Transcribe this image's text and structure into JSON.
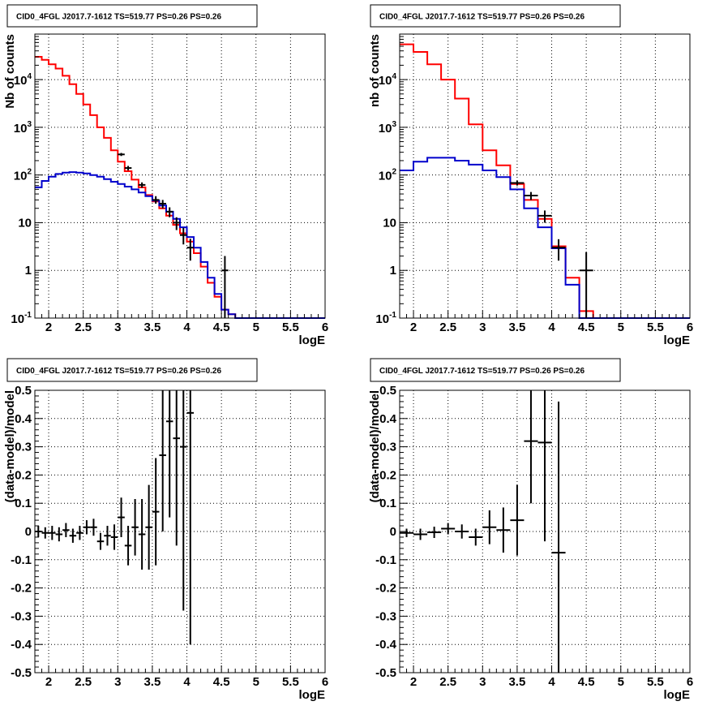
{
  "chart_data": [
    {
      "type": "line",
      "title": "CID0_4FGL J2017.7-1612 TS=519.77 PS=0.26 PS=0.26",
      "xlabel": "logE",
      "ylabel": "Nb of counts",
      "xlim": [
        1.8,
        6.0
      ],
      "ylim": [
        0.1,
        90000
      ],
      "yscale": "log",
      "grid": true,
      "xticks": [
        "2",
        "2.5",
        "3",
        "3.5",
        "4",
        "4.5",
        "5",
        "5.5",
        "6"
      ],
      "yticks": [
        "10^-1",
        "1",
        "10",
        "10^2",
        "10^3",
        "10^4"
      ],
      "series": [
        {
          "color": "#ff0000",
          "edges": [
            1.8,
            1.9,
            2.0,
            2.1,
            2.2,
            2.3,
            2.4,
            2.5,
            2.6,
            2.7,
            2.8,
            2.9,
            3.0,
            3.1,
            3.2,
            3.3,
            3.4,
            3.5,
            3.6,
            3.7,
            3.8,
            3.9,
            4.0,
            4.1,
            4.2,
            4.3,
            4.4,
            4.5,
            4.6,
            4.7,
            4.8,
            4.9,
            5.0,
            5.1,
            5.2,
            5.3,
            5.4,
            5.5,
            5.6,
            5.7,
            5.8,
            5.9,
            6.0
          ],
          "values": [
            30000,
            26000,
            21000,
            17000,
            12000,
            8000,
            5000,
            3000,
            1800,
            1000,
            600,
            330,
            190,
            120,
            80,
            55,
            38,
            28,
            20,
            14,
            9,
            6,
            4,
            2.3,
            1.2,
            0.55,
            0.28,
            0.15,
            0.12,
            0.1,
            0.1,
            0.1,
            0.1,
            0.1,
            0.1,
            0.1,
            0.1,
            0.1,
            0.1,
            0.1,
            0.1,
            0.1
          ]
        },
        {
          "color": "#0000cc",
          "edges": [
            1.8,
            1.9,
            2.0,
            2.1,
            2.2,
            2.3,
            2.4,
            2.5,
            2.6,
            2.7,
            2.8,
            2.9,
            3.0,
            3.1,
            3.2,
            3.3,
            3.4,
            3.5,
            3.6,
            3.7,
            3.8,
            3.9,
            4.0,
            4.1,
            4.2,
            4.3,
            4.4,
            4.5,
            4.6,
            4.7,
            4.8,
            4.9,
            5.0,
            5.1,
            5.2,
            5.3,
            5.4,
            5.5,
            5.6,
            5.7,
            5.8,
            5.9,
            6.0
          ],
          "values": [
            55,
            75,
            92,
            105,
            112,
            115,
            112,
            108,
            100,
            92,
            82,
            72,
            65,
            57,
            50,
            43,
            36,
            29,
            23,
            17,
            12,
            8,
            5,
            3,
            1.5,
            0.7,
            0.32,
            0.15,
            0.12,
            0.1,
            0.1,
            0.1,
            0.1,
            0.1,
            0.1,
            0.1,
            0.1,
            0.1,
            0.1,
            0.1,
            0.1,
            0.1
          ]
        }
      ],
      "points": [
        {
          "x": 3.05,
          "y": 270,
          "ylo": 250,
          "yhi": 290,
          "xerr": 0.05
        },
        {
          "x": 3.15,
          "y": 140,
          "ylo": 125,
          "yhi": 155,
          "xerr": 0.05
        },
        {
          "x": 3.35,
          "y": 62,
          "ylo": 54,
          "yhi": 70,
          "xerr": 0.05
        },
        {
          "x": 3.55,
          "y": 30,
          "ylo": 25,
          "yhi": 36,
          "xerr": 0.05
        },
        {
          "x": 3.65,
          "y": 25,
          "ylo": 20,
          "yhi": 30,
          "xerr": 0.05
        },
        {
          "x": 3.75,
          "y": 17,
          "ylo": 13,
          "yhi": 21,
          "xerr": 0.05
        },
        {
          "x": 3.85,
          "y": 10,
          "ylo": 7,
          "yhi": 13,
          "xerr": 0.05
        },
        {
          "x": 3.95,
          "y": 5.5,
          "ylo": 3.5,
          "yhi": 7.8,
          "xerr": 0.05
        },
        {
          "x": 4.05,
          "y": 3,
          "ylo": 1.6,
          "yhi": 4.6,
          "xerr": 0.05
        },
        {
          "x": 4.55,
          "y": 1,
          "ylo": 0.1,
          "yhi": 2.0,
          "xerr": 0.05
        }
      ]
    },
    {
      "type": "line",
      "title": "CID0_4FGL J2017.7-1612 TS=519.77 PS=0.26 PS=0.26",
      "xlabel": "logE",
      "ylabel": "nb of counts",
      "xlim": [
        1.8,
        6.0
      ],
      "ylim": [
        0.1,
        90000
      ],
      "yscale": "log",
      "grid": true,
      "xticks": [
        "2",
        "2.5",
        "3",
        "3.5",
        "4",
        "4.5",
        "5",
        "5.5",
        "6"
      ],
      "yticks": [
        "10^-1",
        "1",
        "10",
        "10^2",
        "10^3",
        "10^4"
      ],
      "series": [
        {
          "color": "#ff0000",
          "edges": [
            1.8,
            2.0,
            2.2,
            2.4,
            2.6,
            2.8,
            3.0,
            3.2,
            3.4,
            3.6,
            3.8,
            4.0,
            4.2,
            4.4,
            4.6,
            4.8,
            5.0,
            5.2,
            5.4,
            5.6,
            5.8,
            6.0
          ],
          "values": [
            55000,
            38000,
            21000,
            10000,
            4000,
            1150,
            330,
            160,
            65,
            30,
            12,
            3.2,
            0.7,
            0.14,
            0.1,
            0.1,
            0.1,
            0.1,
            0.1,
            0.1,
            0.1
          ]
        },
        {
          "color": "#0000cc",
          "edges": [
            1.8,
            2.0,
            2.2,
            2.4,
            2.6,
            2.8,
            3.0,
            3.2,
            3.4,
            3.6,
            3.8,
            4.0,
            4.2,
            4.4,
            4.6,
            4.8,
            5.0,
            5.2,
            5.4,
            5.6,
            5.8,
            6.0
          ],
          "values": [
            125,
            190,
            230,
            230,
            200,
            165,
            125,
            90,
            50,
            20,
            8,
            2.9,
            0.5,
            0.1,
            0.1,
            0.1,
            0.1,
            0.1,
            0.1,
            0.1,
            0.1
          ]
        }
      ],
      "points": [
        {
          "x": 3.5,
          "y": 68,
          "ylo": 60,
          "yhi": 76,
          "xerr": 0.1
        },
        {
          "x": 3.7,
          "y": 37,
          "ylo": 30,
          "yhi": 44,
          "xerr": 0.1
        },
        {
          "x": 3.9,
          "y": 14,
          "ylo": 10,
          "yhi": 18,
          "xerr": 0.1
        },
        {
          "x": 4.1,
          "y": 3,
          "ylo": 1.6,
          "yhi": 4.5,
          "xerr": 0.1
        },
        {
          "x": 4.5,
          "y": 1,
          "ylo": 0.1,
          "yhi": 2.4,
          "xerr": 0.1
        }
      ]
    },
    {
      "type": "scatter",
      "title": "CID0_4FGL J2017.7-1612 TS=519.77 PS=0.26 PS=0.26",
      "xlabel": "logE",
      "ylabel": "(data-model)/model",
      "xlim": [
        1.8,
        6.0
      ],
      "ylim": [
        -0.5,
        0.5
      ],
      "grid": true,
      "xticks": [
        "2",
        "2.5",
        "3",
        "3.5",
        "4",
        "4.5",
        "5",
        "5.5",
        "6"
      ],
      "yticks": [
        "-0.5",
        "-0.4",
        "-0.3",
        "-0.2",
        "-0.1",
        "0",
        "0.1",
        "0.2",
        "0.3",
        "0.4",
        "0.5"
      ],
      "points": [
        {
          "x": 1.85,
          "y": 0.0,
          "ylo": -0.02,
          "yhi": 0.02,
          "xerr": 0.05
        },
        {
          "x": 1.95,
          "y": -0.005,
          "ylo": -0.025,
          "yhi": 0.015,
          "xerr": 0.05
        },
        {
          "x": 2.05,
          "y": -0.005,
          "ylo": -0.03,
          "yhi": 0.02,
          "xerr": 0.05
        },
        {
          "x": 2.15,
          "y": -0.01,
          "ylo": -0.035,
          "yhi": 0.015,
          "xerr": 0.05
        },
        {
          "x": 2.25,
          "y": 0.005,
          "ylo": -0.02,
          "yhi": 0.03,
          "xerr": 0.05
        },
        {
          "x": 2.35,
          "y": -0.015,
          "ylo": -0.04,
          "yhi": 0.01,
          "xerr": 0.05
        },
        {
          "x": 2.45,
          "y": -0.005,
          "ylo": -0.03,
          "yhi": 0.02,
          "xerr": 0.05
        },
        {
          "x": 2.55,
          "y": 0.015,
          "ylo": -0.01,
          "yhi": 0.04,
          "xerr": 0.05
        },
        {
          "x": 2.65,
          "y": 0.015,
          "ylo": -0.015,
          "yhi": 0.045,
          "xerr": 0.05
        },
        {
          "x": 2.75,
          "y": -0.035,
          "ylo": -0.065,
          "yhi": -0.005,
          "xerr": 0.05
        },
        {
          "x": 2.85,
          "y": -0.015,
          "ylo": -0.05,
          "yhi": 0.02,
          "xerr": 0.05
        },
        {
          "x": 2.95,
          "y": -0.02,
          "ylo": -0.065,
          "yhi": 0.025,
          "xerr": 0.05
        },
        {
          "x": 3.05,
          "y": 0.05,
          "ylo": -0.02,
          "yhi": 0.12,
          "xerr": 0.05
        },
        {
          "x": 3.15,
          "y": -0.05,
          "ylo": -0.12,
          "yhi": 0.02,
          "xerr": 0.05
        },
        {
          "x": 3.25,
          "y": 0.015,
          "ylo": -0.085,
          "yhi": 0.115,
          "xerr": 0.05
        },
        {
          "x": 3.35,
          "y": -0.01,
          "ylo": -0.135,
          "yhi": 0.115,
          "xerr": 0.05
        },
        {
          "x": 3.45,
          "y": 0.015,
          "ylo": -0.135,
          "yhi": 0.165,
          "xerr": 0.05
        },
        {
          "x": 3.55,
          "y": 0.07,
          "ylo": -0.12,
          "yhi": 0.26,
          "xerr": 0.05
        },
        {
          "x": 3.65,
          "y": 0.27,
          "ylo": 0.0,
          "yhi": 0.54,
          "xerr": 0.05
        },
        {
          "x": 3.75,
          "y": 0.39,
          "ylo": 0.05,
          "yhi": 0.73,
          "xerr": 0.05
        },
        {
          "x": 3.85,
          "y": 0.33,
          "ylo": -0.05,
          "yhi": 0.71,
          "xerr": 0.05
        },
        {
          "x": 3.95,
          "y": 0.3,
          "ylo": -0.28,
          "yhi": 0.88,
          "xerr": 0.05
        },
        {
          "x": 4.05,
          "y": 0.42,
          "ylo": -0.4,
          "yhi": 1.24,
          "xerr": 0.05
        }
      ]
    },
    {
      "type": "scatter",
      "title": "CID0_4FGL J2017.7-1612 TS=519.77 PS=0.26 PS=0.26",
      "xlabel": "logE",
      "ylabel": "(data-model)/model",
      "xlim": [
        1.8,
        6.0
      ],
      "ylim": [
        -0.5,
        0.5
      ],
      "grid": true,
      "xticks": [
        "2",
        "2.5",
        "3",
        "3.5",
        "4",
        "4.5",
        "5",
        "5.5",
        "6"
      ],
      "yticks": [
        "-0.5",
        "-0.4",
        "-0.3",
        "-0.2",
        "-0.1",
        "0",
        "0.1",
        "0.2",
        "0.3",
        "0.4",
        "0.5"
      ],
      "points": [
        {
          "x": 1.9,
          "y": -0.005,
          "ylo": -0.02,
          "yhi": 0.01,
          "xerr": 0.1
        },
        {
          "x": 2.1,
          "y": -0.01,
          "ylo": -0.03,
          "yhi": 0.01,
          "xerr": 0.1
        },
        {
          "x": 2.3,
          "y": -0.003,
          "ylo": -0.023,
          "yhi": 0.017,
          "xerr": 0.1
        },
        {
          "x": 2.5,
          "y": 0.01,
          "ylo": -0.01,
          "yhi": 0.03,
          "xerr": 0.1
        },
        {
          "x": 2.7,
          "y": 0.0,
          "ylo": -0.025,
          "yhi": 0.025,
          "xerr": 0.1
        },
        {
          "x": 2.9,
          "y": -0.02,
          "ylo": -0.05,
          "yhi": 0.01,
          "xerr": 0.1
        },
        {
          "x": 3.1,
          "y": 0.015,
          "ylo": -0.045,
          "yhi": 0.075,
          "xerr": 0.1
        },
        {
          "x": 3.3,
          "y": 0.005,
          "ylo": -0.075,
          "yhi": 0.085,
          "xerr": 0.1
        },
        {
          "x": 3.5,
          "y": 0.04,
          "ylo": -0.085,
          "yhi": 0.165,
          "xerr": 0.1
        },
        {
          "x": 3.7,
          "y": 0.32,
          "ylo": 0.1,
          "yhi": 0.54,
          "xerr": 0.1
        },
        {
          "x": 3.9,
          "y": 0.315,
          "ylo": -0.035,
          "yhi": 0.665,
          "xerr": 0.1
        },
        {
          "x": 4.1,
          "y": -0.075,
          "ylo": -0.61,
          "yhi": 0.46,
          "xerr": 0.1
        }
      ]
    }
  ]
}
